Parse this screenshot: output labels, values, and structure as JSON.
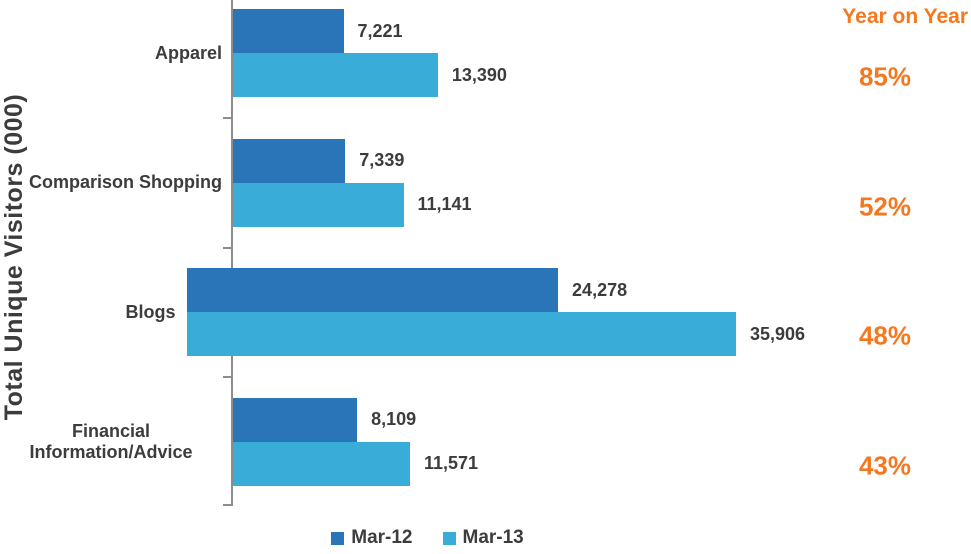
{
  "colors": {
    "series_mar12": "#2A74B8",
    "series_mar13": "#39ACD8",
    "accent_orange": "#F5781F",
    "text": "#3C3C3C",
    "axis": "#8C8C8C"
  },
  "chart_data": {
    "type": "bar",
    "orientation": "horizontal",
    "title": "",
    "ylabel": "Total Unique Visitors (000)",
    "xlabel": "",
    "xlim": [
      0,
      36600
    ],
    "grid": false,
    "legend_position": "bottom",
    "categories": [
      "Apparel",
      "Comparison Shopping",
      "Blogs",
      "Financial Information/Advice"
    ],
    "series": [
      {
        "name": "Mar-12",
        "color": "#2A74B8",
        "values": [
          7221,
          7339,
          24278,
          8109
        ],
        "value_labels": [
          "7,221",
          "7,339",
          "24,278",
          "8,109"
        ]
      },
      {
        "name": "Mar-13",
        "color": "#39ACD8",
        "values": [
          13390,
          11141,
          35906,
          11571
        ],
        "value_labels": [
          "13,390",
          "11,141",
          "35,906",
          "11,571"
        ]
      }
    ],
    "annotations": {
      "title": "Year on Year",
      "values": [
        "85%",
        "52%",
        "48%",
        "43%"
      ],
      "color": "#F5781F"
    }
  }
}
